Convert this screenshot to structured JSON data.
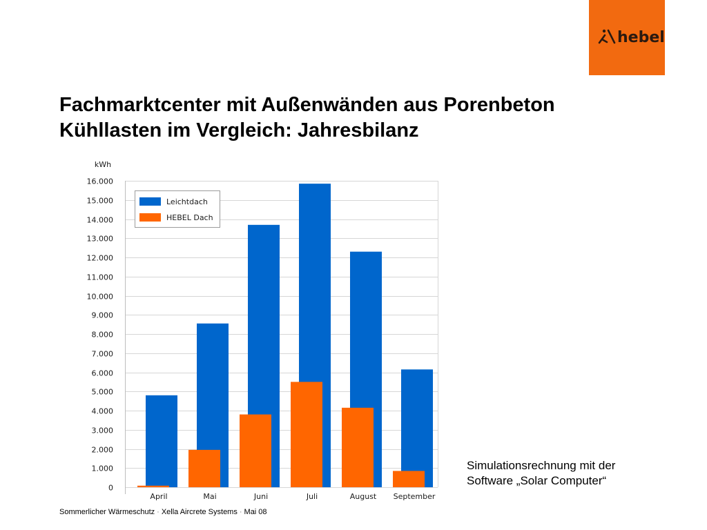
{
  "brand": {
    "logo_text": "hebel",
    "color": "#f26a10"
  },
  "title": {
    "line1": "Fachmarktcenter mit Außenwänden aus Porenbeton",
    "line2": "Kühllasten im Vergleich: Jahresbilanz"
  },
  "note": {
    "line1": "Simulationsrechnung mit der",
    "line2": "Software „Solar Computer“"
  },
  "footer": {
    "part1": "Sommerlicher Wärmeschutz",
    "part2": "Xella Aircrete Systems",
    "part3": "Mai 08",
    "separator": "·"
  },
  "chart_data": {
    "type": "bar",
    "unit_label": "kWh",
    "categories": [
      "April",
      "Mai",
      "Juni",
      "Juli",
      "August",
      "September"
    ],
    "series": [
      {
        "name": "Leichtdach",
        "color": "#0066cc",
        "values": [
          4800,
          8550,
          13700,
          15850,
          12300,
          6150
        ]
      },
      {
        "name": "HEBEL Dach",
        "color": "#ff6600",
        "values": [
          80,
          1950,
          3800,
          5500,
          4150,
          850
        ]
      }
    ],
    "ylim": [
      0,
      16000
    ],
    "yticks": [
      0,
      1000,
      2000,
      3000,
      4000,
      5000,
      6000,
      7000,
      8000,
      9000,
      10000,
      11000,
      12000,
      13000,
      14000,
      15000,
      16000
    ],
    "ytick_labels": [
      "0",
      "1.000",
      "2.000",
      "3.000",
      "4.000",
      "5.000",
      "6.000",
      "7.000",
      "8.000",
      "9.000",
      "10.000",
      "11.000",
      "12.000",
      "13.000",
      "14.000",
      "15.000",
      "16.000"
    ],
    "grid": true,
    "legend_position": "top-left"
  }
}
